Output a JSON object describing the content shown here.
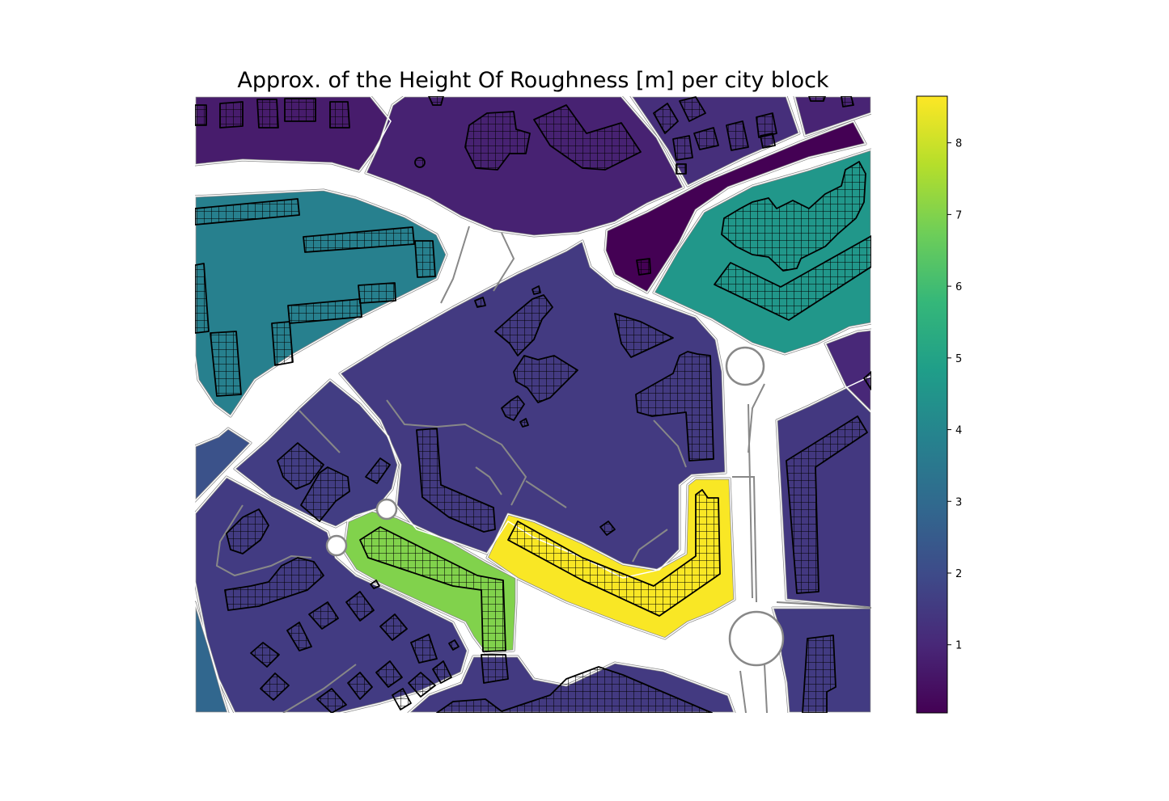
{
  "title": "Approx. of the Height Of Roughness [m] per city block",
  "colorbar": {
    "colormap": "viridis",
    "min": 0.05,
    "max": 8.65,
    "ticks": [
      "1",
      "2",
      "3",
      "4",
      "5",
      "6",
      "7",
      "8"
    ],
    "stops": [
      "#440154",
      "#482878",
      "#3e4a89",
      "#31688e",
      "#26828e",
      "#1f9e89",
      "#35b779",
      "#6ece58",
      "#b5de2b",
      "#fde725"
    ]
  },
  "blocks": [
    {
      "id": "nw-strip",
      "value": 0.7
    },
    {
      "id": "north-center",
      "value": 0.85
    },
    {
      "id": "northeast",
      "value": 1.2
    },
    {
      "id": "east-dark-strip",
      "value": 0.05
    },
    {
      "id": "far-east-top",
      "value": 0.9
    },
    {
      "id": "west-teal",
      "value": 3.8
    },
    {
      "id": "east-teal",
      "value": 4.6
    },
    {
      "id": "center-large",
      "value": 1.5
    },
    {
      "id": "far-left",
      "value": 2.2
    },
    {
      "id": "mid-left",
      "value": 1.6
    },
    {
      "id": "south-west",
      "value": 1.55
    },
    {
      "id": "green-curve",
      "value": 7.0
    },
    {
      "id": "yellow-l",
      "value": 8.6
    },
    {
      "id": "east-right",
      "value": 1.45
    },
    {
      "id": "east-small",
      "value": 1.0
    },
    {
      "id": "bottom-right",
      "value": 1.55
    },
    {
      "id": "bottom-center",
      "value": 1.5
    },
    {
      "id": "sw-corner",
      "value": 2.9
    }
  ]
}
